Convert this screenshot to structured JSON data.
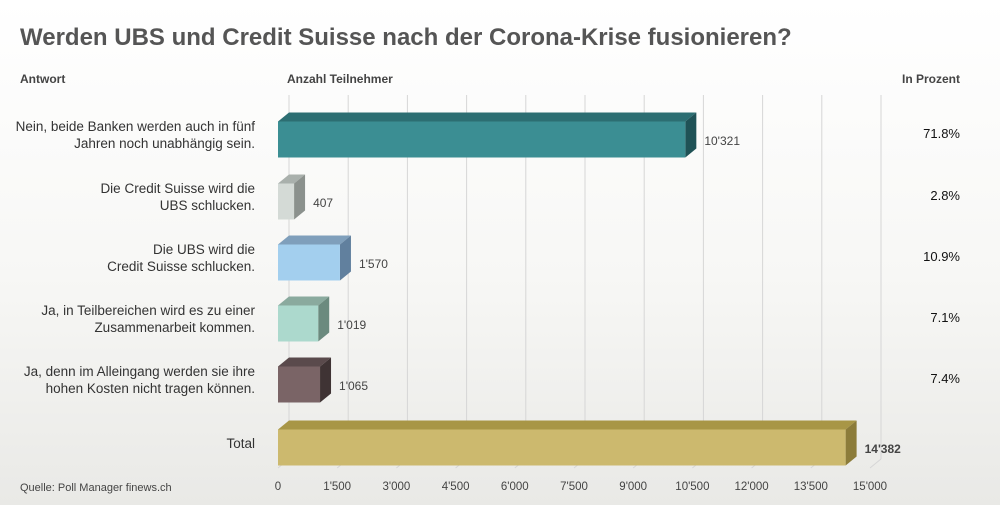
{
  "title": "Werden UBS und Credit Suisse nach der Corona-Krise fusionieren?",
  "headers": {
    "answer": "Antwort",
    "count": "Anzahl Teilnehmer",
    "percent": "In Prozent"
  },
  "source": "Quelle: Poll Manager finews.ch",
  "chart_data": {
    "type": "bar",
    "orientation": "horizontal",
    "title": "Werden UBS und Credit Suisse nach der Corona-Krise fusionieren?",
    "xlim": [
      0,
      15000
    ],
    "x_ticks": [
      "0",
      "1'500",
      "3'000",
      "4'500",
      "6'000",
      "7'500",
      "9'000",
      "10'500",
      "12'000",
      "13'500",
      "15'000"
    ],
    "grid": true,
    "categories": [
      [
        "Nein, beide Banken werden auch in fünf",
        "Jahren noch unabhängig sein."
      ],
      [
        "Die Credit Suisse wird die",
        "UBS schlucken."
      ],
      [
        "Die UBS wird die",
        "Credit Suisse schlucken."
      ],
      [
        "Ja, in Teilbereichen wird es zu einer",
        "Zusammenarbeit kommen."
      ],
      [
        "Ja, denn im Alleingang werden sie ihre",
        "hohen Kosten nicht tragen können."
      ],
      [
        "Total"
      ]
    ],
    "values": [
      10321,
      407,
      1570,
      1019,
      1065,
      14382
    ],
    "value_labels": [
      "10'321",
      "407",
      "1'570",
      "1'019",
      "1'065",
      "14'382"
    ],
    "percents": [
      "71.8%",
      "2.8%",
      "10.9%",
      "7.1%",
      "7.4%",
      ""
    ],
    "colors": [
      {
        "front": "#3b8e93",
        "top": "#2c6e72",
        "side": "#1f5256"
      },
      {
        "front": "#d4dad6",
        "top": "#a9b0ac",
        "side": "#8b918d"
      },
      {
        "front": "#a3cfee",
        "top": "#7f9fbb",
        "side": "#61809e"
      },
      {
        "front": "#acd9cd",
        "top": "#8aaa9e",
        "side": "#6b8a7e"
      },
      {
        "front": "#7a6466",
        "top": "#5a4a4c",
        "side": "#3f3334"
      },
      {
        "front": "#ccb96e",
        "top": "#a89646",
        "side": "#8c7c3a"
      }
    ]
  }
}
